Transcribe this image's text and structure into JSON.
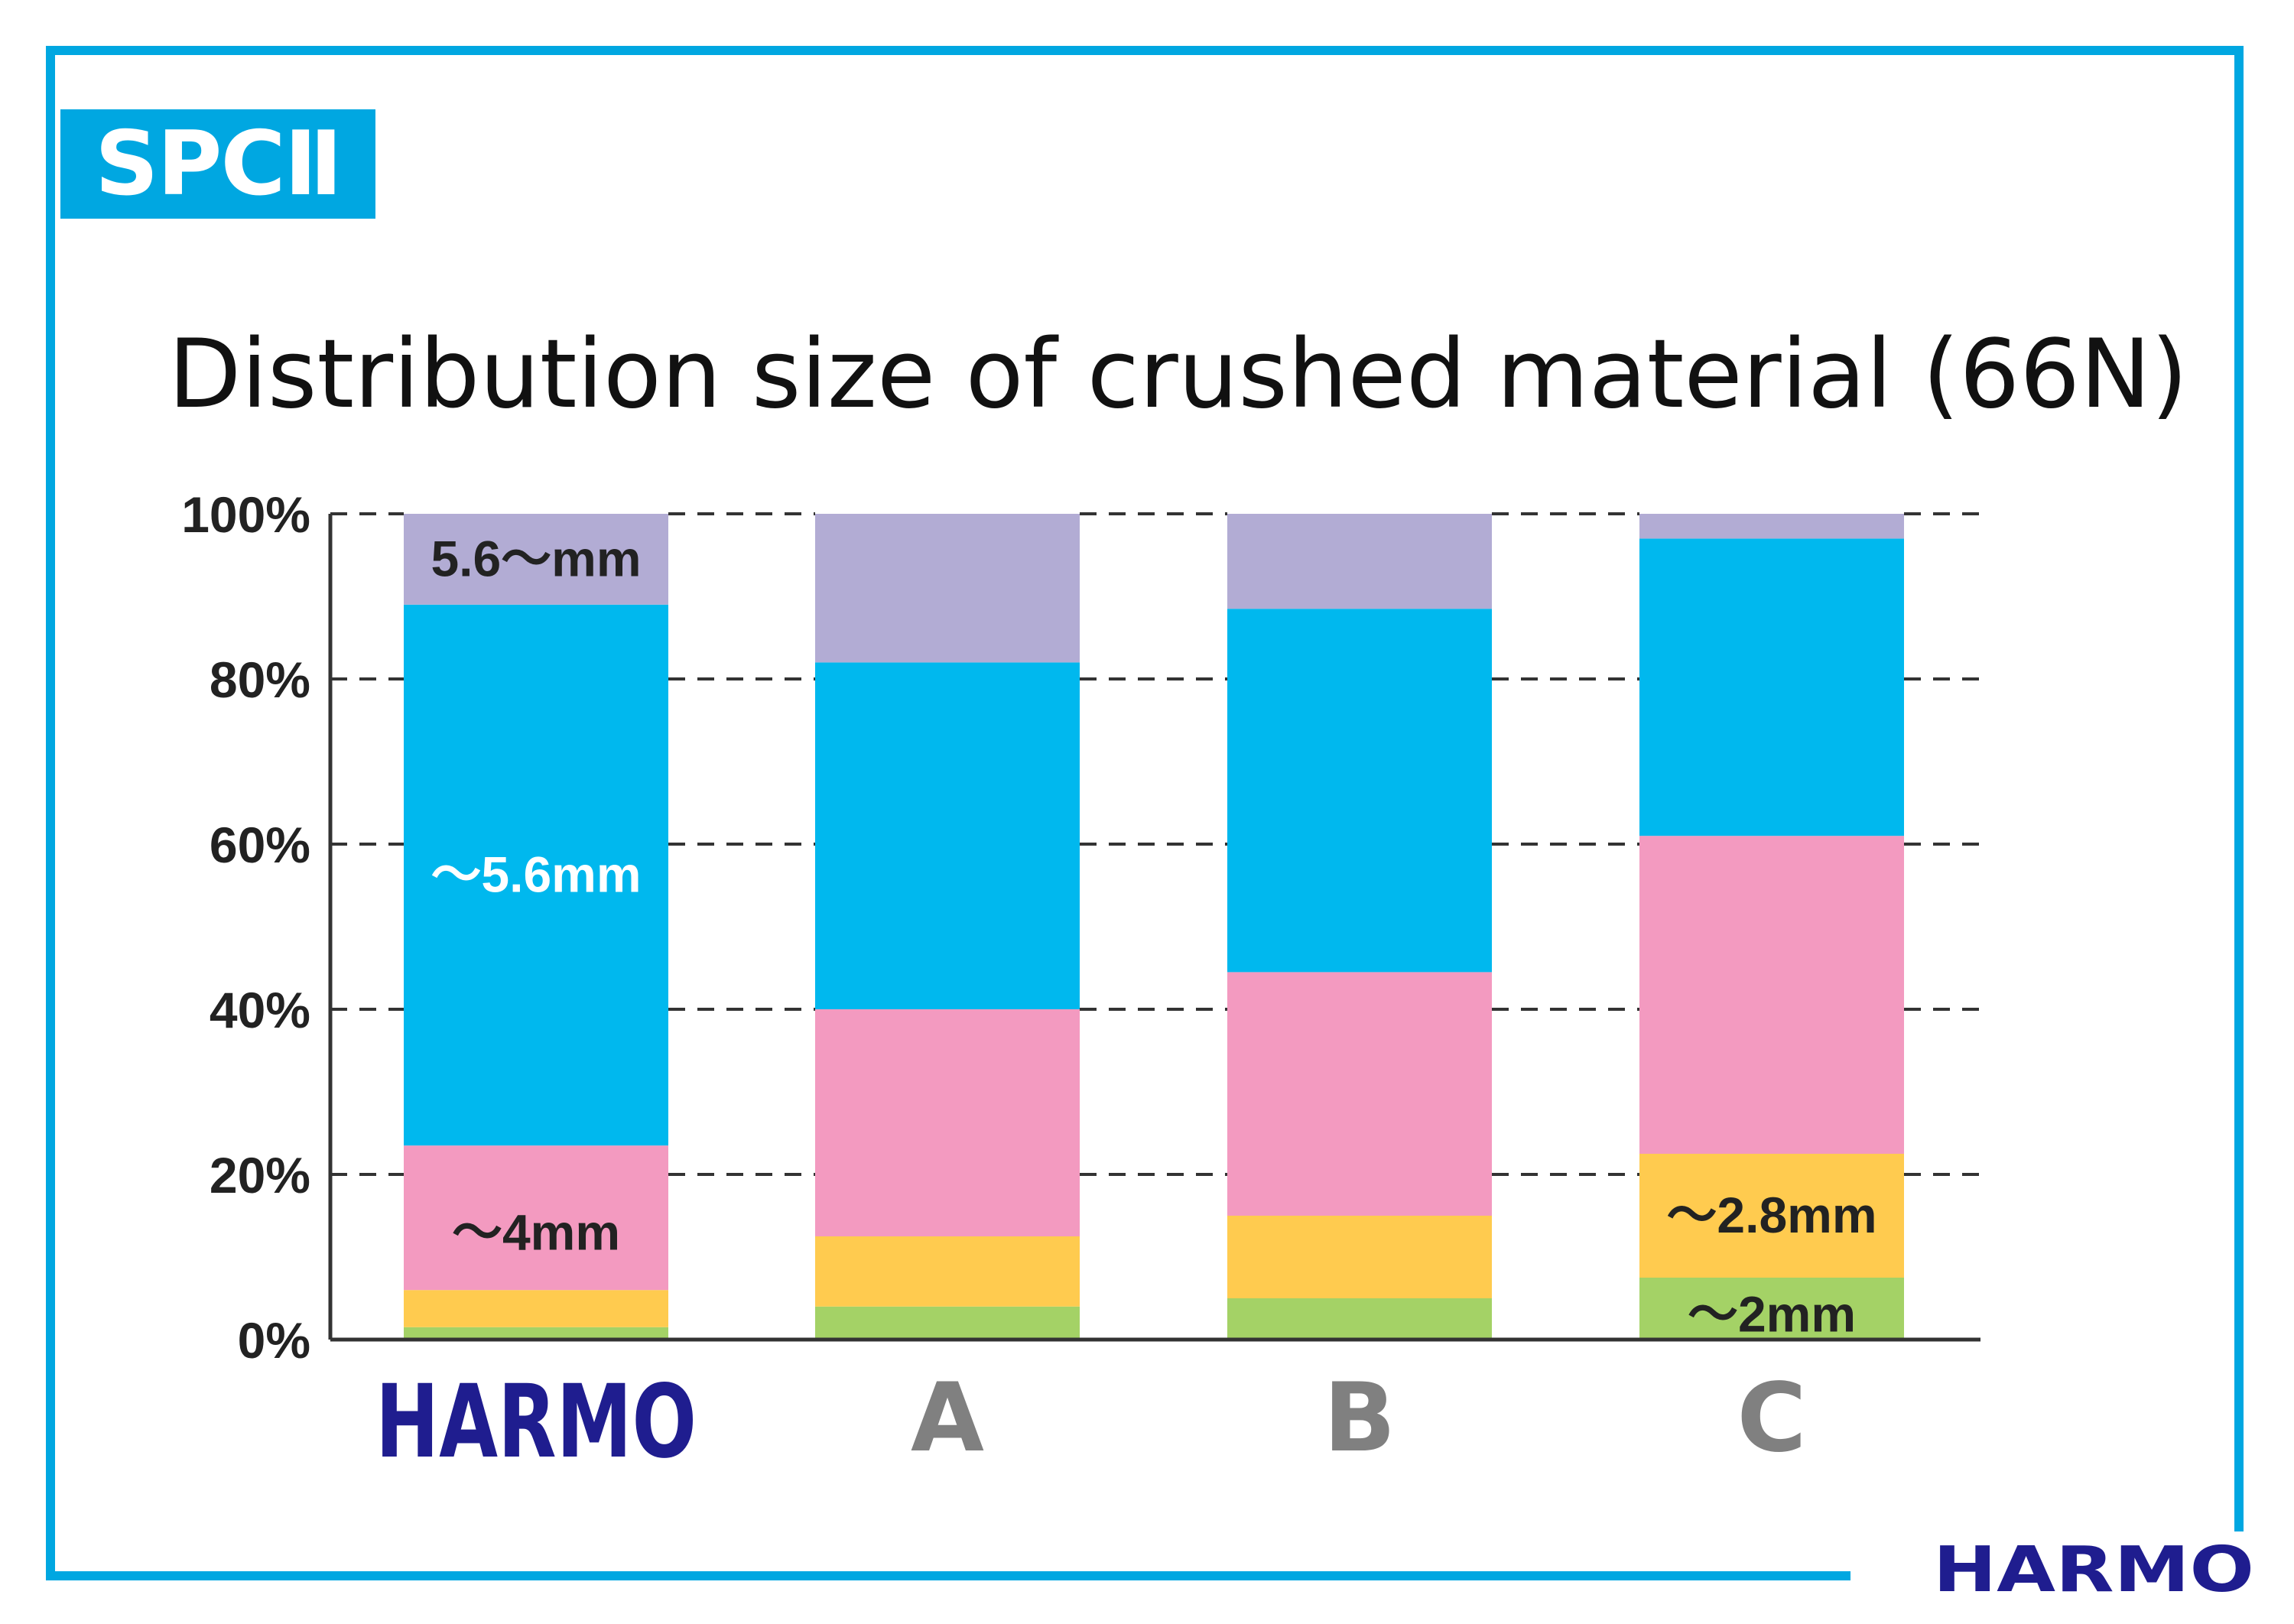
{
  "badge": "SPCⅡ",
  "brand_logo": "HARMO",
  "colors": {
    "frame": "#00a7e1",
    "brand_navy": "#1f1d8f",
    "category_text": "#808080"
  },
  "chart_data": {
    "type": "bar",
    "stacked": true,
    "title": "Distribution size of crushed material (66N)",
    "categories": [
      "HARMO",
      "A",
      "B",
      "C"
    ],
    "ylim": [
      0,
      100
    ],
    "yticks": [
      "0%",
      "20%",
      "40%",
      "60%",
      "80%",
      "100%"
    ],
    "grid": "dashed horizontal",
    "series": [
      {
        "name": "~2mm",
        "color": "#a4d266",
        "values": [
          1.5,
          4,
          5,
          7.5
        ]
      },
      {
        "name": "~2.8mm",
        "color": "#ffcb4f",
        "values": [
          4.5,
          8.5,
          10,
          15
        ]
      },
      {
        "name": "~4mm",
        "color": "#f39ac0",
        "values": [
          17.5,
          27.5,
          29.5,
          38.5
        ]
      },
      {
        "name": "~5.6mm",
        "color": "#00b8ee",
        "values": [
          65.5,
          42,
          44,
          36
        ]
      },
      {
        "name": "5.6~mm",
        "color": "#b2acd4",
        "values": [
          11,
          18,
          11.5,
          3
        ]
      }
    ],
    "segment_labels": [
      {
        "text": "5.6～mm",
        "bar": 0,
        "series": 4,
        "color": "#222222"
      },
      {
        "text": "～5.6mm",
        "bar": 0,
        "series": 3,
        "color": "#ffffff"
      },
      {
        "text": "～4mm",
        "bar": 0,
        "series": 2,
        "color": "#222222"
      },
      {
        "text": "～2.8mm",
        "bar": 3,
        "series": 1,
        "color": "#222222"
      },
      {
        "text": "～2mm",
        "bar": 3,
        "series": 0,
        "color": "#222222"
      }
    ]
  }
}
